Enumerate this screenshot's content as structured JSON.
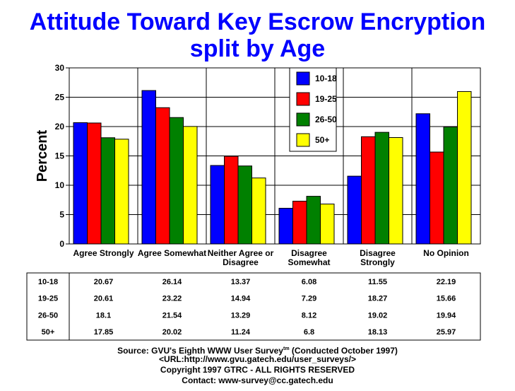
{
  "title_line1": "Attitude Toward Key Escrow Encryption",
  "title_line2": "split by Age",
  "chart_data": {
    "type": "bar",
    "ylabel": "Percent",
    "ylim": [
      0,
      30
    ],
    "yticks": [
      0,
      5,
      10,
      15,
      20,
      25,
      30
    ],
    "categories": [
      [
        "Agree Strongly"
      ],
      [
        "Agree Somewhat"
      ],
      [
        "Neither Agree or",
        "Disagree"
      ],
      [
        "Disagree",
        "Somewhat"
      ],
      [
        "Disagree",
        "Strongly"
      ],
      [
        "No Opinion"
      ]
    ],
    "series": [
      {
        "name": "10-18",
        "color": "#0000ff",
        "values": [
          20.67,
          26.14,
          13.37,
          6.08,
          11.55,
          22.19
        ]
      },
      {
        "name": "19-25",
        "color": "#ff0000",
        "values": [
          20.61,
          23.22,
          14.94,
          7.29,
          18.27,
          15.66
        ]
      },
      {
        "name": "26-50",
        "color": "#008000",
        "values": [
          18.1,
          21.54,
          13.29,
          8.12,
          19.02,
          19.94
        ]
      },
      {
        "name": "50+",
        "color": "#ffff00",
        "values": [
          17.85,
          20.02,
          11.24,
          6.8,
          18.13,
          25.97
        ]
      }
    ],
    "grid": true,
    "legend": "top-center-right"
  },
  "footer": {
    "source_prefix": "Source: GVU's Eighth WWW User Survey",
    "source_tm": "tm",
    "source_suffix": " (Conducted October 1997)",
    "url": "<URL:http://www.gvu.gatech.edu/user_surveys/>",
    "copyright": "Copyright 1997 GTRC - ALL RIGHTS RESERVED",
    "contact": "Contact: www-survey@cc.gatech.edu"
  }
}
